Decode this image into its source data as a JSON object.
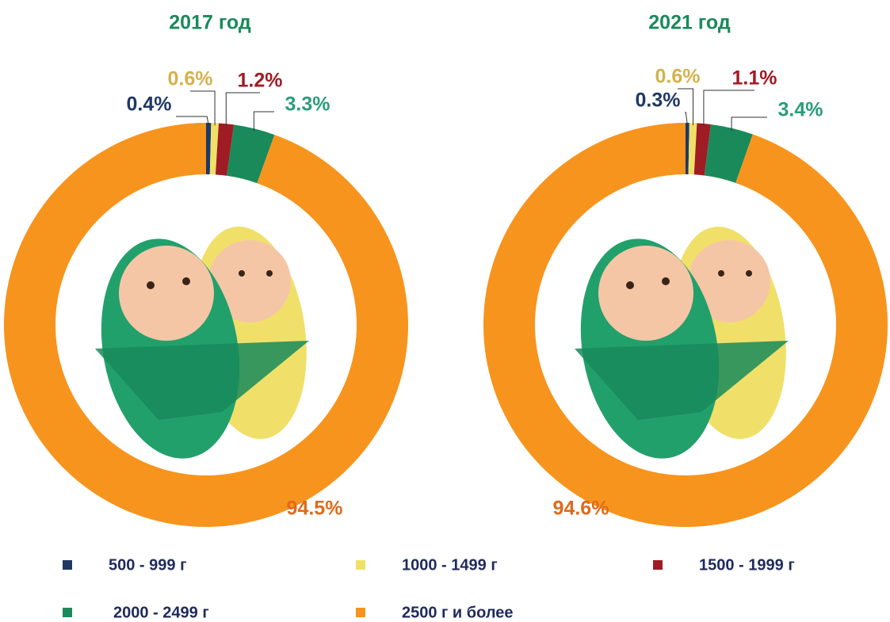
{
  "chart_data": [
    {
      "type": "pie",
      "title": "2017 год",
      "values": [
        0.4,
        0.6,
        1.2,
        3.3,
        94.5
      ],
      "value_labels": [
        "0.4%",
        "0.6%",
        "1.2%",
        "3.3%",
        "94.5%"
      ]
    },
    {
      "type": "pie",
      "title": "2021 год",
      "values": [
        0.3,
        0.6,
        1.1,
        3.4,
        94.6
      ],
      "value_labels": [
        "0.3%",
        "0.6%",
        "1.1%",
        "3.4%",
        "94.6%"
      ]
    }
  ],
  "legend": [
    {
      "name": "500 - 999 г",
      "color": "#1f3864"
    },
    {
      "name": "1000 - 1499 г",
      "color": "#f0e068"
    },
    {
      "name": "1500 - 1999 г",
      "color": "#a01c24"
    },
    {
      "name": "2000 - 2499 г",
      "color": "#1a8a5a"
    },
    {
      "name": "2500 г и более",
      "color": "#f7941d"
    }
  ]
}
